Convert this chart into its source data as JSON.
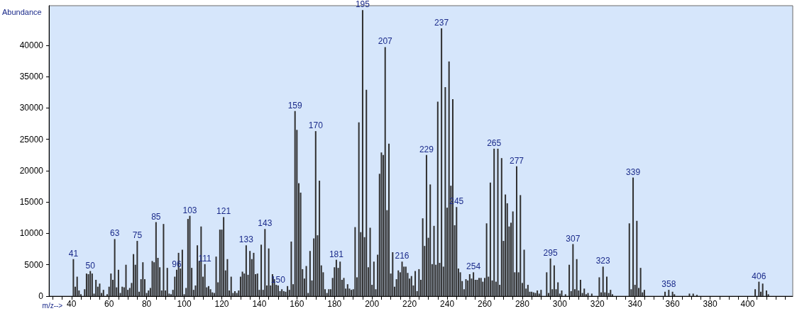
{
  "chart_data": {
    "type": "bar",
    "xlabel": "m/z-->",
    "ylabel": "Abundance",
    "color": "#303030",
    "x": [
      41,
      42,
      43,
      44,
      45,
      47,
      48,
      49,
      50,
      51,
      52,
      53,
      54,
      55,
      56,
      57,
      59,
      60,
      61,
      62,
      63,
      64,
      65,
      66,
      67,
      68,
      69,
      70,
      71,
      72,
      73,
      74,
      75,
      76,
      77,
      78,
      79,
      80,
      81,
      82,
      83,
      84,
      85,
      86,
      87,
      88,
      89,
      90,
      91,
      92,
      93,
      94,
      95,
      96,
      97,
      98,
      99,
      100,
      101,
      102,
      103,
      104,
      105,
      106,
      107,
      108,
      109,
      110,
      111,
      112,
      113,
      114,
      115,
      116,
      117,
      118,
      119,
      120,
      121,
      122,
      123,
      124,
      125,
      126,
      127,
      128,
      129,
      130,
      131,
      132,
      133,
      134,
      135,
      136,
      137,
      138,
      139,
      140,
      141,
      142,
      143,
      144,
      145,
      146,
      147,
      148,
      149,
      150,
      151,
      152,
      153,
      154,
      155,
      156,
      157,
      158,
      159,
      160,
      161,
      162,
      163,
      164,
      165,
      166,
      167,
      168,
      169,
      170,
      171,
      172,
      173,
      174,
      175,
      176,
      177,
      178,
      179,
      180,
      181,
      182,
      183,
      184,
      185,
      186,
      187,
      188,
      189,
      190,
      191,
      192,
      193,
      194,
      195,
      196,
      197,
      198,
      199,
      200,
      201,
      202,
      203,
      204,
      205,
      206,
      207,
      208,
      209,
      210,
      211,
      212,
      213,
      214,
      215,
      216,
      217,
      218,
      219,
      220,
      221,
      222,
      223,
      224,
      225,
      226,
      227,
      228,
      229,
      230,
      231,
      232,
      233,
      234,
      235,
      236,
      237,
      238,
      239,
      240,
      241,
      242,
      243,
      244,
      245,
      246,
      247,
      248,
      249,
      250,
      251,
      252,
      253,
      254,
      255,
      256,
      257,
      258,
      259,
      260,
      261,
      262,
      263,
      264,
      265,
      266,
      267,
      268,
      269,
      270,
      271,
      272,
      273,
      274,
      275,
      276,
      277,
      278,
      279,
      280,
      281,
      282,
      283,
      284,
      285,
      286,
      287,
      288,
      289,
      290,
      293,
      294,
      295,
      296,
      297,
      298,
      299,
      300,
      301,
      303,
      305,
      306,
      307,
      308,
      309,
      310,
      311,
      312,
      313,
      314,
      315,
      317,
      321,
      322,
      323,
      324,
      325,
      326,
      327,
      328,
      337,
      338,
      339,
      340,
      341,
      342,
      343,
      344,
      345,
      356,
      358,
      360,
      361,
      369,
      371,
      373,
      404,
      406,
      407,
      408,
      410,
      411
    ],
    "values": [
      5900,
      1500,
      3100,
      900,
      300,
      1100,
      3600,
      3500,
      4000,
      3600,
      400,
      2600,
      1500,
      2000,
      500,
      1000,
      300,
      1500,
      3600,
      2600,
      9100,
      1400,
      4200,
      500,
      1500,
      1400,
      5000,
      1000,
      1300,
      2100,
      6700,
      5000,
      8800,
      700,
      2700,
      5400,
      2700,
      500,
      900,
      1300,
      5600,
      5400,
      11800,
      6100,
      4600,
      900,
      11500,
      900,
      4500,
      400,
      300,
      1000,
      3100,
      4200,
      6900,
      4400,
      7400,
      300,
      1300,
      12300,
      12800,
      4500,
      1000,
      1700,
      8100,
      5600,
      11100,
      3100,
      5100,
      1400,
      1600,
      1100,
      600,
      500,
      6300,
      2200,
      10600,
      10600,
      12600,
      4100,
      5900,
      900,
      3100,
      500,
      800,
      500,
      900,
      3100,
      3900,
      3600,
      8100,
      3400,
      7200,
      5900,
      6900,
      3500,
      3600,
      1000,
      8200,
      1000,
      10700,
      1700,
      7600,
      1700,
      3500,
      2700,
      1800,
      1700,
      800,
      1100,
      800,
      700,
      1600,
      1000,
      8700,
      1900,
      29500,
      26500,
      18000,
      16500,
      4300,
      2800,
      4800,
      500,
      7200,
      2500,
      9200,
      26300,
      9700,
      18400,
      4900,
      3800,
      1100,
      500,
      1100,
      1100,
      2900,
      4600,
      5800,
      4500,
      5500,
      2600,
      2900,
      1200,
      1900,
      1200,
      1000,
      1100,
      11000,
      3000,
      27700,
      10200,
      45600,
      9400,
      32900,
      4600,
      10900,
      1800,
      5500,
      1100,
      6600,
      19500,
      22900,
      22500,
      39700,
      13700,
      24300,
      3600,
      7000,
      1500,
      2700,
      4100,
      3800,
      5500,
      4700,
      4700,
      3700,
      2800,
      3200,
      1700,
      4000,
      800,
      4300,
      2600,
      12400,
      8000,
      22500,
      9300,
      17800,
      5100,
      11200,
      5000,
      31000,
      5300,
      42700,
      4700,
      33300,
      14100,
      37400,
      17600,
      31400,
      11300,
      14200,
      4400,
      3800,
      2400,
      1100,
      2700,
      2500,
      3500,
      2800,
      3800,
      2600,
      2600,
      2900,
      2900,
      2300,
      2900,
      11600,
      3100,
      18100,
      2500,
      23500,
      2300,
      23500,
      1800,
      22000,
      8800,
      16200,
      14800,
      11100,
      11700,
      13500,
      3800,
      20700,
      3800,
      16100,
      2100,
      7400,
      1200,
      1800,
      700,
      700,
      600,
      500,
      900,
      400,
      1000,
      3800,
      500,
      6000,
      1100,
      4900,
      1100,
      2200,
      400,
      900,
      300,
      5000,
      800,
      8300,
      1100,
      5900,
      900,
      2600,
      500,
      1200,
      300,
      500,
      400,
      3000,
      600,
      4700,
      600,
      3100,
      500,
      1000,
      300,
      11600,
      1100,
      18900,
      1800,
      12000,
      1300,
      4500,
      600,
      1000,
      700,
      1000,
      700,
      300,
      400,
      400,
      200,
      1100,
      2300,
      700,
      2000,
      900,
      300
    ],
    "annotations": [
      {
        "text": "41",
        "x": 41,
        "y": 5900
      },
      {
        "text": "50",
        "x": 50,
        "y": 4000
      },
      {
        "text": "63",
        "x": 63,
        "y": 9100
      },
      {
        "text": "75",
        "x": 75,
        "y": 8800
      },
      {
        "text": "85",
        "x": 85,
        "y": 11800
      },
      {
        "text": "96",
        "x": 96,
        "y": 4200
      },
      {
        "text": "103",
        "x": 103,
        "y": 12800
      },
      {
        "text": "111",
        "x": 111,
        "y": 5100
      },
      {
        "text": "121",
        "x": 121,
        "y": 12600
      },
      {
        "text": "133",
        "x": 133,
        "y": 8100
      },
      {
        "text": "143",
        "x": 143,
        "y": 10700
      },
      {
        "text": "150",
        "x": 150,
        "y": 1700
      },
      {
        "text": "159",
        "x": 159,
        "y": 29500
      },
      {
        "text": "170",
        "x": 170,
        "y": 26300
      },
      {
        "text": "181",
        "x": 181,
        "y": 5800
      },
      {
        "text": "195",
        "x": 195,
        "y": 45600
      },
      {
        "text": "207",
        "x": 207,
        "y": 39700
      },
      {
        "text": "216",
        "x": 216,
        "y": 5500
      },
      {
        "text": "229",
        "x": 229,
        "y": 22500
      },
      {
        "text": "237",
        "x": 237,
        "y": 42700
      },
      {
        "text": "245",
        "x": 245,
        "y": 14200
      },
      {
        "text": "254",
        "x": 254,
        "y": 3800
      },
      {
        "text": "265",
        "x": 265,
        "y": 23500
      },
      {
        "text": "277",
        "x": 277,
        "y": 20700
      },
      {
        "text": "295",
        "x": 295,
        "y": 6000
      },
      {
        "text": "307",
        "x": 307,
        "y": 8300
      },
      {
        "text": "323",
        "x": 323,
        "y": 4700
      },
      {
        "text": "339",
        "x": 339,
        "y": 18900
      },
      {
        "text": "358",
        "x": 358,
        "y": 1000
      },
      {
        "text": "406",
        "x": 406,
        "y": 2300
      }
    ],
    "xlim": [
      28,
      424
    ],
    "xticks": [
      {
        "value": 30,
        "label": null
      },
      {
        "value": 35,
        "label": null
      },
      40,
      {
        "value": 45,
        "label": null
      },
      {
        "value": 50,
        "label": null
      },
      {
        "value": 55,
        "label": null
      },
      60,
      {
        "value": 65,
        "label": null
      },
      {
        "value": 70,
        "label": null
      },
      {
        "value": 75,
        "label": null
      },
      80,
      {
        "value": 85,
        "label": null
      },
      {
        "value": 90,
        "label": null
      },
      {
        "value": 95,
        "label": null
      },
      100,
      {
        "value": 105,
        "label": null
      },
      {
        "value": 110,
        "label": null
      },
      {
        "value": 115,
        "label": null
      },
      120,
      {
        "value": 125,
        "label": null
      },
      {
        "value": 130,
        "label": null
      },
      {
        "value": 135,
        "label": null
      },
      140,
      {
        "value": 145,
        "label": null
      },
      {
        "value": 150,
        "label": null
      },
      {
        "value": 155,
        "label": null
      },
      160,
      {
        "value": 165,
        "label": null
      },
      {
        "value": 170,
        "label": null
      },
      {
        "value": 175,
        "label": null
      },
      180,
      {
        "value": 185,
        "label": null
      },
      {
        "value": 190,
        "label": null
      },
      {
        "value": 195,
        "label": null
      },
      200,
      {
        "value": 205,
        "label": null
      },
      {
        "value": 210,
        "label": null
      },
      {
        "value": 215,
        "label": null
      },
      220,
      {
        "value": 225,
        "label": null
      },
      {
        "value": 230,
        "label": null
      },
      {
        "value": 235,
        "label": null
      },
      240,
      {
        "value": 245,
        "label": null
      },
      {
        "value": 250,
        "label": null
      },
      {
        "value": 255,
        "label": null
      },
      260,
      {
        "value": 265,
        "label": null
      },
      {
        "value": 270,
        "label": null
      },
      {
        "value": 275,
        "label": null
      },
      280,
      {
        "value": 285,
        "label": null
      },
      {
        "value": 290,
        "label": null
      },
      {
        "value": 295,
        "label": null
      },
      300,
      {
        "value": 305,
        "label": null
      },
      {
        "value": 310,
        "label": null
      },
      {
        "value": 315,
        "label": null
      },
      320,
      {
        "value": 325,
        "label": null
      },
      {
        "value": 330,
        "label": null
      },
      {
        "value": 335,
        "label": null
      },
      340,
      {
        "value": 345,
        "label": null
      },
      {
        "value": 350,
        "label": null
      },
      {
        "value": 355,
        "label": null
      },
      360,
      {
        "value": 365,
        "label": null
      },
      {
        "value": 370,
        "label": null
      },
      {
        "value": 375,
        "label": null
      },
      380,
      {
        "value": 385,
        "label": null
      },
      {
        "value": 390,
        "label": null
      },
      {
        "value": 395,
        "label": null
      },
      400,
      {
        "value": 405,
        "label": null
      },
      {
        "value": 410,
        "label": null
      },
      {
        "value": 415,
        "label": null
      },
      {
        "value": 420,
        "label": null
      }
    ],
    "ylim": [
      0,
      46300
    ],
    "yticks": [
      0,
      5000,
      10000,
      15000,
      20000,
      25000,
      30000,
      35000,
      40000
    ],
    "grid": false
  }
}
